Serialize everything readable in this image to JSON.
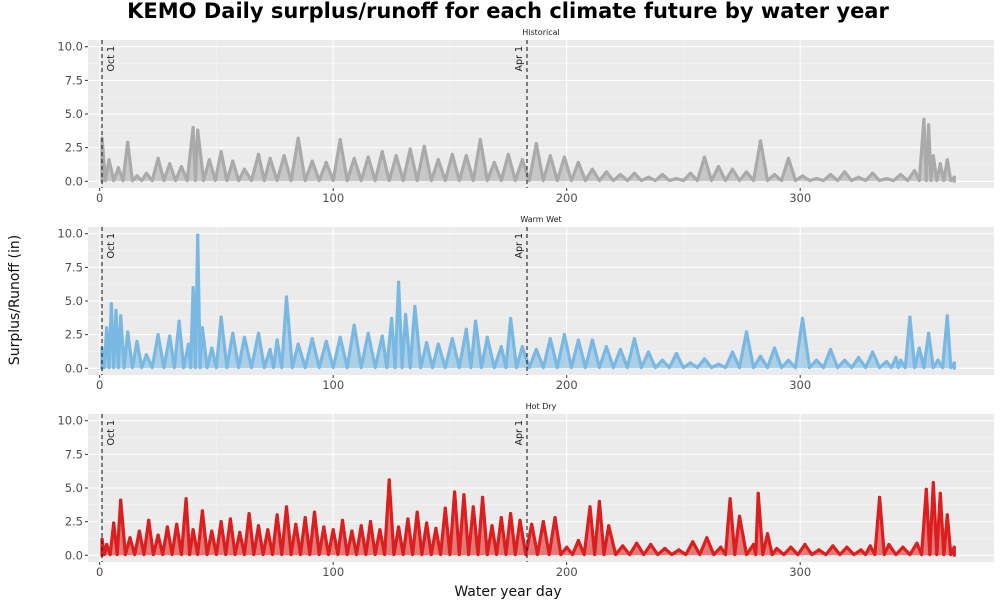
{
  "chart_data": {
    "type": "line",
    "title": "KEMO Daily surplus/runoff for each climate future by water year",
    "xlabel": "Water year day",
    "ylabel": "Surplus/Runoff (in)",
    "xlim": [
      -5,
      383
    ],
    "ylim": [
      -0.5,
      10.5
    ],
    "x_ticks": [
      0,
      100,
      200,
      300
    ],
    "x_tick_labels": [
      "0",
      "100",
      "200",
      "300"
    ],
    "y_ticks": [
      0,
      2.5,
      5,
      7.5,
      10
    ],
    "y_tick_labels": [
      "0.0",
      "2.5",
      "5.0",
      "7.5",
      "10.0"
    ],
    "grid": true,
    "reference_lines": [
      {
        "x": 1,
        "label": "Oct 1"
      },
      {
        "x": 183,
        "label": "Apr 1"
      }
    ],
    "panels": [
      {
        "name": "Historical",
        "color": "#aaaaaa",
        "x": [
          1,
          4,
          8,
          12,
          16,
          20,
          25,
          30,
          35,
          40,
          42,
          47,
          52,
          57,
          62,
          68,
          73,
          79,
          85,
          91,
          97,
          103,
          109,
          115,
          121,
          127,
          133,
          139,
          145,
          151,
          157,
          163,
          169,
          175,
          181,
          187,
          193,
          199,
          205,
          211,
          217,
          223,
          229,
          235,
          241,
          247,
          253,
          259,
          265,
          271,
          277,
          283,
          289,
          295,
          301,
          307,
          313,
          319,
          325,
          331,
          337,
          343,
          349,
          353,
          355,
          357,
          360,
          363,
          366
        ],
        "values": [
          3.2,
          1.6,
          1.0,
          2.9,
          0.4,
          0.6,
          1.7,
          1.3,
          1.1,
          4.0,
          3.8,
          1.6,
          2.2,
          1.5,
          0.9,
          2.0,
          1.7,
          1.9,
          3.2,
          1.5,
          1.4,
          3.1,
          1.7,
          1.8,
          2.2,
          1.9,
          2.4,
          2.6,
          1.6,
          2.0,
          1.9,
          3.1,
          1.4,
          2.0,
          1.6,
          2.8,
          1.9,
          1.8,
          1.4,
          0.9,
          0.7,
          0.5,
          0.6,
          0.3,
          0.5,
          0.2,
          0.6,
          1.8,
          1.1,
          0.9,
          0.7,
          3.0,
          0.5,
          1.7,
          0.4,
          0.2,
          0.5,
          0.7,
          0.3,
          0.6,
          0.2,
          0.5,
          0.8,
          4.6,
          4.2,
          1.9,
          1.3,
          1.6,
          0.3
        ]
      },
      {
        "name": "Warm Wet",
        "color": "#78b8e2",
        "x": [
          1,
          3,
          5,
          7,
          9,
          12,
          16,
          20,
          25,
          30,
          34,
          38,
          40,
          42,
          44,
          48,
          52,
          57,
          62,
          68,
          73,
          76,
          80,
          85,
          91,
          97,
          103,
          109,
          115,
          121,
          125,
          128,
          131,
          135,
          140,
          145,
          151,
          157,
          161,
          166,
          172,
          176,
          181,
          187,
          193,
          199,
          205,
          211,
          217,
          223,
          229,
          235,
          241,
          247,
          253,
          259,
          265,
          271,
          277,
          283,
          289,
          295,
          301,
          307,
          313,
          319,
          325,
          331,
          337,
          341,
          343,
          347,
          351,
          355,
          359,
          363,
          366
        ],
        "values": [
          1.5,
          3.0,
          4.8,
          4.3,
          3.9,
          2.7,
          2.0,
          1.0,
          2.5,
          2.4,
          3.5,
          1.8,
          6.0,
          9.9,
          3.0,
          1.5,
          3.8,
          2.6,
          2.3,
          2.6,
          1.4,
          2.1,
          5.3,
          1.8,
          2.2,
          2.0,
          2.3,
          3.2,
          2.6,
          2.4,
          3.7,
          6.4,
          4.0,
          4.6,
          1.9,
          1.8,
          2.2,
          2.9,
          3.5,
          2.3,
          1.6,
          3.7,
          1.6,
          1.4,
          2.2,
          2.5,
          2.1,
          2.1,
          1.6,
          1.4,
          2.2,
          1.2,
          0.6,
          1.1,
          0.4,
          0.7,
          0.3,
          1.2,
          2.7,
          0.9,
          1.5,
          0.6,
          3.7,
          0.6,
          1.4,
          0.6,
          0.8,
          1.2,
          0.5,
          0.8,
          0.6,
          3.8,
          1.5,
          2.6,
          0.6,
          3.9,
          0.4
        ]
      },
      {
        "name": "Hot Dry",
        "color": "#dc1e1e",
        "x": [
          1,
          3,
          6,
          9,
          13,
          17,
          21,
          25,
          29,
          33,
          37,
          40,
          44,
          48,
          52,
          56,
          60,
          64,
          68,
          72,
          76,
          80,
          84,
          88,
          92,
          96,
          100,
          104,
          108,
          112,
          116,
          120,
          124,
          128,
          132,
          136,
          140,
          144,
          148,
          152,
          156,
          160,
          164,
          168,
          172,
          176,
          180,
          185,
          190,
          195,
          200,
          205,
          210,
          214,
          218,
          224,
          230,
          236,
          242,
          248,
          254,
          260,
          266,
          270,
          274,
          280,
          282,
          286,
          290,
          296,
          302,
          308,
          314,
          320,
          326,
          330,
          334,
          338,
          344,
          350,
          354,
          357,
          360,
          363,
          366
        ],
        "values": [
          1.2,
          0.8,
          2.4,
          4.1,
          1.3,
          1.8,
          2.6,
          1.5,
          2.1,
          2.3,
          4.2,
          1.9,
          3.3,
          1.8,
          2.5,
          2.7,
          1.7,
          3.1,
          2.2,
          1.9,
          3.0,
          3.6,
          2.3,
          2.8,
          3.2,
          2.1,
          1.9,
          2.6,
          1.8,
          2.2,
          2.5,
          1.9,
          5.6,
          2.1,
          2.7,
          3.2,
          2.4,
          2.0,
          3.5,
          4.7,
          4.5,
          3.6,
          4.3,
          2.2,
          2.8,
          3.1,
          2.6,
          2.3,
          2.5,
          2.8,
          0.6,
          1.1,
          3.6,
          4.0,
          2.2,
          0.7,
          0.9,
          0.8,
          0.5,
          0.4,
          1.0,
          1.3,
          0.6,
          4.2,
          2.9,
          0.8,
          4.6,
          1.6,
          0.5,
          0.6,
          0.8,
          0.4,
          0.7,
          0.6,
          0.4,
          0.7,
          4.3,
          0.8,
          0.6,
          0.9,
          4.9,
          5.4,
          4.6,
          3.0,
          0.6
        ]
      }
    ]
  }
}
